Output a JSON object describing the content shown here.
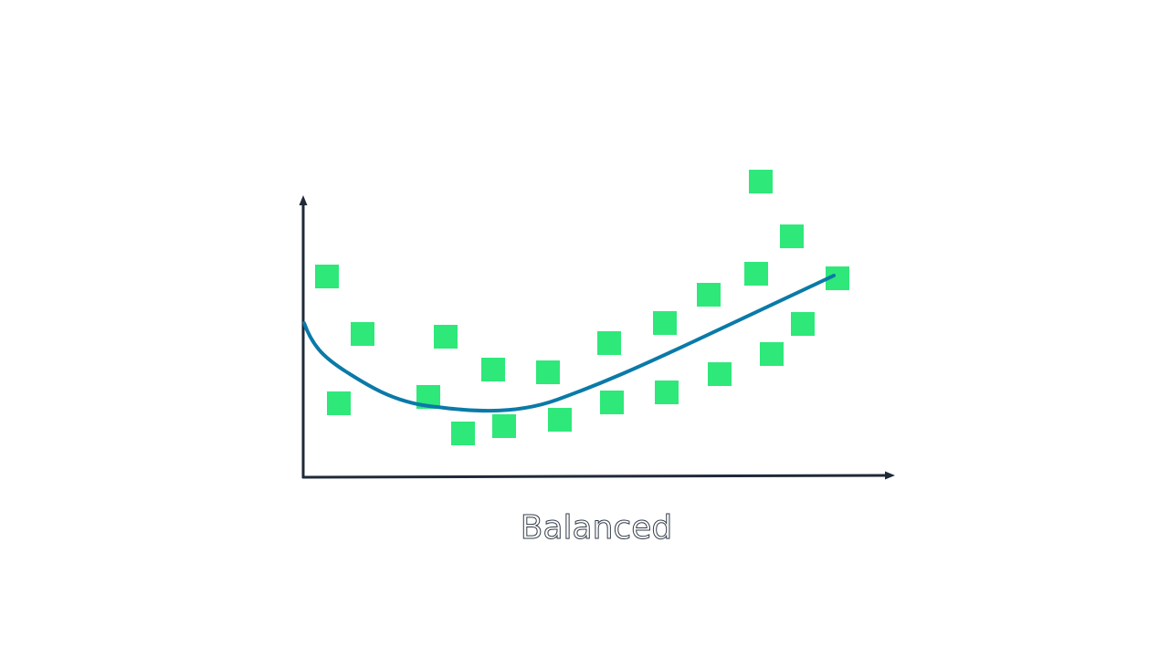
{
  "caption": "Balanced"
}
